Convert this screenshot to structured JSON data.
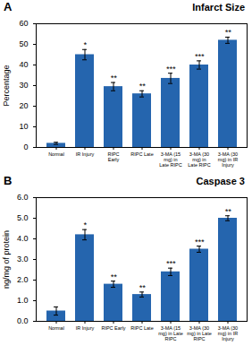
{
  "chart_data": [
    {
      "type": "bar",
      "title": "Infarct Size",
      "panel_label": "A",
      "ylabel": "Percentage",
      "categories": [
        "Normal",
        "IR Injury",
        "RIPC\nEarly",
        "RIPC Late",
        "3-MA (15\nmg) in\nLate RIPC",
        "3-MA (30\nmg) in\nLate RIPC",
        "3-MA (30\nmg) in IR\nInjury"
      ],
      "values": [
        2.0,
        45.0,
        29.5,
        26.0,
        33.5,
        40.0,
        52.0
      ],
      "errors": [
        0.5,
        2.5,
        2.0,
        1.5,
        2.5,
        2.0,
        1.5
      ],
      "annotations": [
        {
          "x": "IR Injury",
          "text": "*"
        },
        {
          "x": "RIPC\nEarly",
          "text": "**"
        },
        {
          "x": "RIPC Late",
          "text": "**"
        },
        {
          "x": "3-MA (15\nmg) in\nLate RIPC",
          "text": "***"
        },
        {
          "x": "3-MA (30\nmg) in\nLate RIPC",
          "text": "***"
        },
        {
          "x": "3-MA (30\nmg) in IR\nInjury",
          "text": "**"
        }
      ],
      "color": "#2565ae",
      "ylim": [
        0,
        60
      ],
      "yticks": [
        0,
        10,
        20,
        30,
        40,
        50,
        60
      ],
      "grid": false
    },
    {
      "type": "bar",
      "title": "Caspase 3",
      "panel_label": "B",
      "ylabel": "ng/mg of protein",
      "categories": [
        "Normal",
        "IR Injury",
        "RIPC Early",
        "RIPC Late",
        "3-MA (15\nmg) in Late\nRIPC",
        "3-MA (30\nmg) in Late\nRIPC",
        "3-MA (30\nmg) in IR\nInjury"
      ],
      "values": [
        0.5,
        4.2,
        1.8,
        1.3,
        2.4,
        3.5,
        5.0
      ],
      "errors": [
        0.2,
        0.25,
        0.15,
        0.12,
        0.18,
        0.15,
        0.12
      ],
      "annotations": [
        {
          "x": "IR Injury",
          "text": "*"
        },
        {
          "x": "RIPC Early",
          "text": "**"
        },
        {
          "x": "RIPC Late",
          "text": "**"
        },
        {
          "x": "3-MA (15\nmg) in Late\nRIPC",
          "text": "***"
        },
        {
          "x": "3-MA (30\nmg) in Late\nRIPC",
          "text": "***"
        },
        {
          "x": "3-MA (30\nmg) in IR\nInjury",
          "text": "**"
        }
      ],
      "color": "#2565ae",
      "ylim": [
        0,
        6
      ],
      "yticks": [
        0,
        1,
        2,
        3,
        4,
        5,
        6
      ],
      "grid": false
    }
  ]
}
